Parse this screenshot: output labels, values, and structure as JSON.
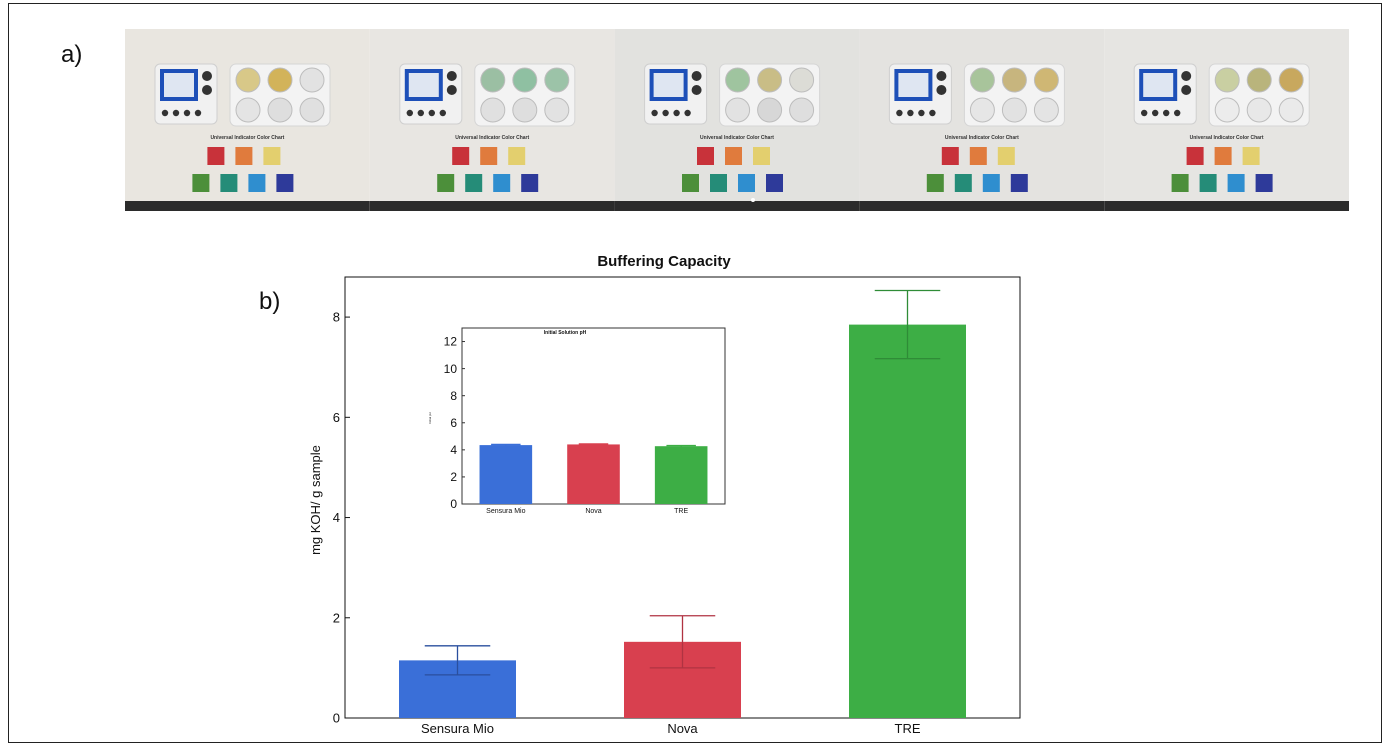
{
  "panel_a": {
    "label": "a)",
    "photos": [
      {
        "chart_caption": "Universal Indicator Color Chart",
        "well_colors": [
          "#d8c888",
          "#d2b35a",
          "#e2e2e2",
          "#e4e4e4",
          "#dedede",
          "#e0e0e0"
        ],
        "bg": "#e9e6e0"
      },
      {
        "chart_caption": "Universal Indicator Color Chart",
        "well_colors": [
          "#9bbfa3",
          "#8fc0a2",
          "#9cc3a8",
          "#e0e0e0",
          "#dedede",
          "#e2e2e2"
        ],
        "bg": "#e8e6e2"
      },
      {
        "chart_caption": "Universal Indicator Color Chart",
        "well_colors": [
          "#9fc49f",
          "#c9bd86",
          "#dcdcd6",
          "#e2e2e2",
          "#d7d7d7",
          "#dedede"
        ],
        "bg": "#e2e2df"
      },
      {
        "chart_caption": "Universal Indicator Color Chart",
        "well_colors": [
          "#a8c49b",
          "#c7b57e",
          "#cfb774",
          "#e6e6e6",
          "#e2e2e2",
          "#e4e4e4"
        ],
        "bg": "#e4e3e0"
      },
      {
        "chart_caption": "Universal Indicator Color Chart",
        "well_colors": [
          "#c9cfa2",
          "#b9b47c",
          "#c8a85e",
          "#ececec",
          "#e8e8e8",
          "#eaeaea"
        ],
        "bg": "#e6e5e2"
      }
    ],
    "swatch_top": [
      "#c8323a",
      "#e07b3d",
      "#e3cf6e"
    ],
    "swatch_bottom": [
      "#4c8f3a",
      "#258c78",
      "#2f8ecf",
      "#2e3a9a"
    ]
  },
  "panel_b": {
    "label": "b)",
    "chart_data": [
      {
        "type": "bar",
        "title": "Buffering Capacity",
        "ylabel": "mg KOH/ g sample",
        "xlabel": "",
        "categories": [
          "Sensura Mio",
          "Nova",
          "TRE"
        ],
        "values": [
          1.15,
          1.52,
          7.85
        ],
        "errors": [
          0.29,
          0.52,
          0.68
        ],
        "colors": [
          "#3a6fd8",
          "#d8404f",
          "#3dae45"
        ],
        "ylim": [
          0,
          8.8
        ],
        "yticks": [
          "0",
          "2",
          "4",
          "6",
          "8"
        ],
        "grid": false
      },
      {
        "type": "bar",
        "title": "Initial Solution pH",
        "ylabel": "Initial pH",
        "xlabel": "",
        "categories": [
          "Sensura Mio",
          "Nova",
          "TRE"
        ],
        "values": [
          4.35,
          4.4,
          4.27
        ],
        "errors": [
          0.05,
          0.04,
          0.05
        ],
        "colors": [
          "#3a6fd8",
          "#d8404f",
          "#3dae45"
        ],
        "ylim": [
          0,
          13
        ],
        "yticks": [
          "0",
          "2",
          "4",
          "6",
          "8",
          "10",
          "12"
        ],
        "grid": false
      }
    ]
  }
}
